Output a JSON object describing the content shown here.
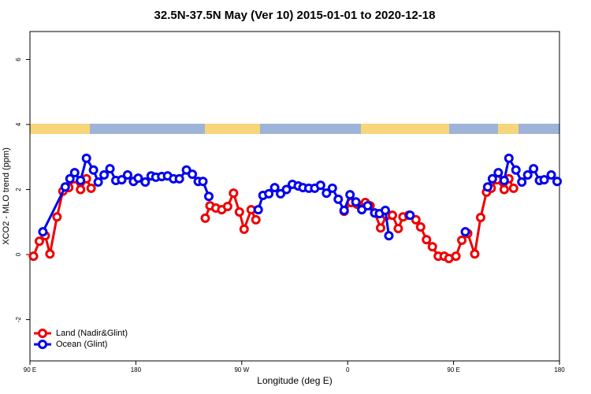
{
  "chart_data": {
    "type": "line",
    "title": "32.5N-37.5N May (Ver 10)   2015-01-01 to 2020-12-18",
    "x_label": "Longitude (deg E)",
    "y_label": "XCO2 - MLO trend (ppm)",
    "xlim": [
      90,
      540
    ],
    "ylim": [
      -3.27,
      6.86
    ],
    "xticks": [
      {
        "value": 90,
        "label": "90 E"
      },
      180,
      {
        "value": 270,
        "label": "90 W"
      },
      {
        "value": 360,
        "label": "0"
      },
      {
        "value": 450,
        "label": "90 E"
      },
      {
        "value": 540,
        "label": "180"
      }
    ],
    "yticks": [
      -2,
      0,
      2,
      4,
      6
    ],
    "legend": "bottom-left",
    "series": [
      {
        "name": "Land (Nadir&Glint)",
        "color": "#ee0000",
        "x": [
          93,
          98,
          103,
          107,
          113,
          118,
          123,
          128,
          133,
          138,
          142,
          null,
          239,
          243,
          248,
          253,
          258,
          263,
          268,
          272,
          278,
          282,
          null,
          357,
          363,
          368,
          375,
          379,
          383,
          388,
          393,
          398,
          403,
          407,
          412,
          418,
          422,
          427,
          432,
          437,
          442,
          446,
          452,
          457,
          462,
          468,
          473,
          478,
          482,
          487,
          493,
          497,
          501
        ],
        "values": [
          -0.05,
          0.41,
          0.58,
          0.02,
          1.16,
          1.95,
          2.06,
          2.33,
          2.0,
          2.33,
          2.04,
          null,
          1.12,
          1.5,
          1.43,
          1.38,
          1.48,
          1.89,
          1.31,
          0.78,
          1.38,
          1.07,
          null,
          1.33,
          1.6,
          1.55,
          1.6,
          1.5,
          1.28,
          0.82,
          1.2,
          1.21,
          0.8,
          1.16,
          1.21,
          1.07,
          0.85,
          0.46,
          0.24,
          -0.05,
          -0.05,
          -0.12,
          -0.05,
          0.44,
          0.65,
          0.02,
          1.14,
          1.92,
          2.04,
          2.3,
          2.0,
          2.33,
          2.04
        ]
      },
      {
        "name": "Ocean (Glint)",
        "color": "#0000ee",
        "x": [
          101,
          120,
          124,
          128,
          133,
          138,
          144,
          148,
          153,
          158,
          163,
          168,
          173,
          178,
          182,
          188,
          193,
          197,
          202,
          207,
          212,
          217,
          223,
          228,
          233,
          237,
          242,
          null,
          284,
          288,
          293,
          298,
          303,
          308,
          313,
          318,
          322,
          327,
          332,
          337,
          342,
          347,
          352,
          357,
          362,
          367,
          372,
          377,
          383,
          387,
          392,
          395,
          null,
          413,
          null,
          460,
          null,
          479,
          483,
          488,
          493,
          497,
          503,
          508,
          513,
          518,
          523,
          527,
          533,
          538
        ],
        "values": [
          0.7,
          2.08,
          2.33,
          2.52,
          2.28,
          2.96,
          2.6,
          2.23,
          2.45,
          2.64,
          2.28,
          2.3,
          2.45,
          2.25,
          2.35,
          2.23,
          2.42,
          2.38,
          2.4,
          2.42,
          2.33,
          2.33,
          2.6,
          2.47,
          2.25,
          2.25,
          1.79,
          null,
          1.38,
          1.82,
          1.87,
          2.06,
          1.87,
          2.0,
          2.16,
          2.11,
          2.06,
          2.04,
          2.04,
          2.13,
          1.89,
          2.04,
          1.7,
          1.36,
          1.84,
          1.62,
          1.38,
          1.5,
          1.28,
          1.26,
          1.36,
          0.58,
          null,
          1.21,
          null,
          0.7,
          null,
          2.08,
          2.33,
          2.52,
          2.28,
          2.96,
          2.6,
          2.23,
          2.45,
          2.64,
          2.28,
          2.3,
          2.45,
          2.25
        ]
      }
    ]
  }
}
